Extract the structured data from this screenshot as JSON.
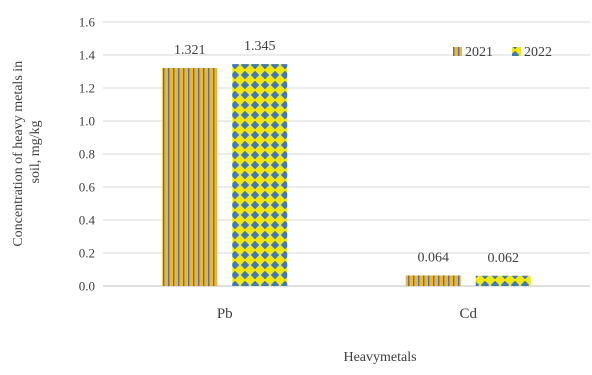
{
  "chart_data": {
    "type": "bar",
    "categories": [
      "Pb",
      "Cd"
    ],
    "series": [
      {
        "name": "2021",
        "values": [
          1.321,
          0.064
        ],
        "value_labels": [
          "1.321",
          "0.064"
        ],
        "pattern": "vertical-stripes",
        "colors": {
          "base": "#f2b61f",
          "accent": "#4f6fb8"
        }
      },
      {
        "name": "2022",
        "values": [
          1.345,
          0.062
        ],
        "value_labels": [
          "1.345",
          "0.062"
        ],
        "pattern": "diamond-checker",
        "colors": {
          "base": "#f2e80f",
          "accent": "#3f77c0"
        }
      }
    ],
    "title": "",
    "xlabel": "Heavymetals",
    "ylabel_lines": [
      "Concentration of heavy metals in",
      "soil, mg/kg"
    ],
    "ylim": [
      0,
      1.6
    ],
    "yticks": [
      "0.0",
      "0.2",
      "0.4",
      "0.6",
      "0.8",
      "1.0",
      "1.2",
      "1.4",
      "1.6"
    ],
    "grid": true,
    "legend_position": "top-right"
  }
}
